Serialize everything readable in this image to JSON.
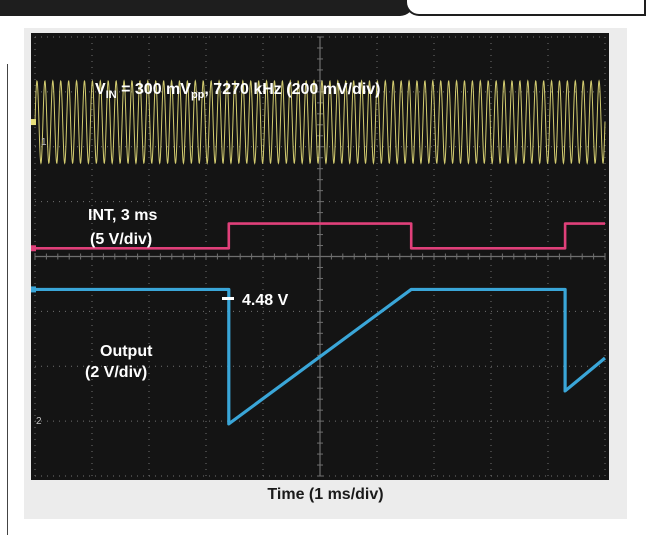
{
  "page_colors": {
    "scope_background": "#141414",
    "grid": "#6f6f6f",
    "panel": "#ececec"
  },
  "chart_data": {
    "type": "line",
    "xlabel": "Time (1 ms/div)",
    "x_unit": "ms",
    "xlim": [
      0,
      10
    ],
    "ylim": [
      -4,
      4
    ],
    "grid": true,
    "channel_markers": [
      "1",
      "2"
    ],
    "annotations": {
      "vin_prefix": "V",
      "vin_sub": "IN",
      "vin_mid": " = 300 mV",
      "vin_sub2": "pp",
      "vin_suffix": ", 7270 kHz (200 mV/div)",
      "int_line1": "INT, 3 ms",
      "int_line2": "(5 V/div)",
      "output_level": "4.48 V",
      "output_line1": "Output",
      "output_line2": "(2 V/div)"
    },
    "series": [
      {
        "name": "VIN",
        "color": "#e8e07a",
        "kind": "sine",
        "amplitude_div": 0.75,
        "center_div": 2.45,
        "cycles_shown": 72
      },
      {
        "name": "INT",
        "color": "#e0407a",
        "kind": "pulse",
        "low_div": 0.15,
        "high_div": 0.6,
        "x": [
          0,
          3.4,
          3.4,
          6.6,
          6.6,
          9.3,
          9.3,
          10
        ],
        "y": [
          0.15,
          0.15,
          0.6,
          0.6,
          0.15,
          0.15,
          0.6,
          0.6
        ]
      },
      {
        "name": "Output",
        "color": "#3aa6d8",
        "kind": "sawtooth",
        "x": [
          0,
          3.4,
          3.4,
          6.6,
          9.3,
          9.3,
          10
        ],
        "y": [
          -0.6,
          -0.6,
          -3.05,
          -0.6,
          -0.6,
          -2.45,
          -1.85
        ]
      }
    ]
  }
}
